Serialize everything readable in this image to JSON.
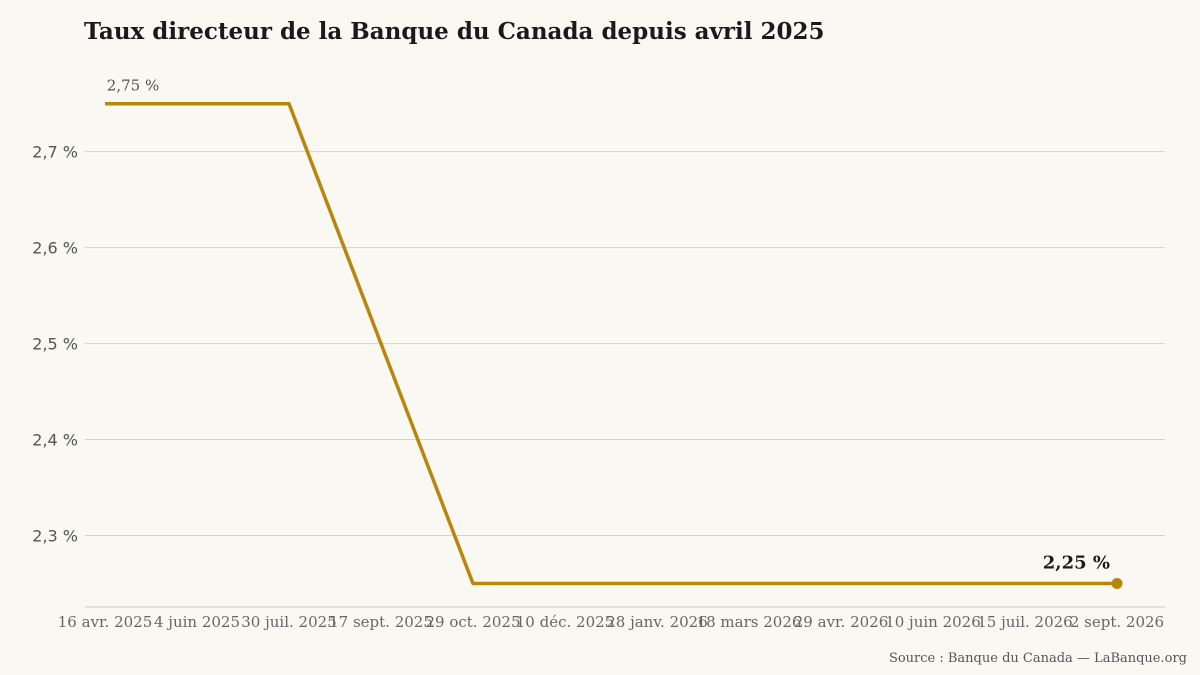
{
  "title": "Taux directeur de la Banque du Canada depuis avril 2025",
  "source": "Source : Banque du Canada — LaBanque.org",
  "colors": {
    "line": "#b8860b",
    "grid": "#d6d3cb",
    "background": "#faf8f3"
  },
  "chart_data": {
    "type": "line",
    "title": "Taux directeur de la Banque du Canada depuis avril 2025",
    "xlabel": "",
    "ylabel": "",
    "x": [
      "2025-04-16",
      "2025-06-04",
      "2025-07-30",
      "2025-09-17",
      "2025-10-29",
      "2025-12-10",
      "2026-01-28",
      "2026-03-18",
      "2026-04-29",
      "2026-06-10",
      "2026-07-15",
      "2026-09-02"
    ],
    "x_tick_labels": [
      "16 avr. 2025",
      "4 juin 2025",
      "30 juil. 2025",
      "17 sept. 2025",
      "29 oct. 2025",
      "10 déc. 2025",
      "28 janv. 2026",
      "18 mars 2026",
      "29 avr. 2026",
      "10 juin 2026",
      "15 juil. 2026",
      "2 sept. 2026"
    ],
    "series": [
      {
        "values": [
          2.75,
          2.75,
          2.75,
          2.5,
          2.25,
          2.25,
          2.25,
          2.25,
          2.25,
          2.25,
          2.25,
          2.25
        ]
      }
    ],
    "y_ticks": [
      2.3,
      2.4,
      2.5,
      2.6,
      2.7
    ],
    "y_tick_labels": [
      "2,3 %",
      "2,4 %",
      "2,5 %",
      "2,6 %",
      "2,7 %"
    ],
    "ylim": [
      2.2255,
      2.7955
    ],
    "grid": true,
    "annotations": {
      "start_label": "2,75 %",
      "end_label": "2,25 %"
    }
  }
}
